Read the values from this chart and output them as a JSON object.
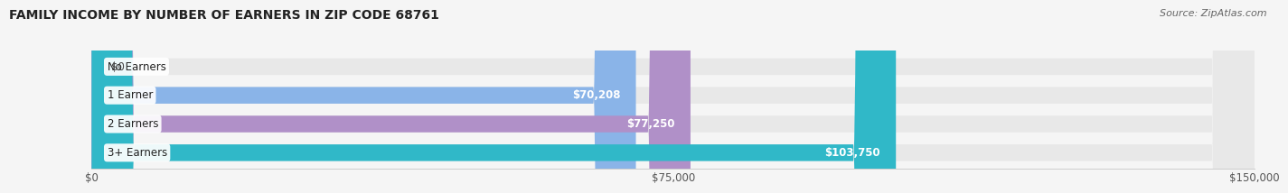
{
  "title": "FAMILY INCOME BY NUMBER OF EARNERS IN ZIP CODE 68761",
  "source": "Source: ZipAtlas.com",
  "categories": [
    "No Earners",
    "1 Earner",
    "2 Earners",
    "3+ Earners"
  ],
  "values": [
    0,
    70208,
    77250,
    103750
  ],
  "labels": [
    "$0",
    "$70,208",
    "$77,250",
    "$103,750"
  ],
  "bar_colors": [
    "#f0a0a8",
    "#8ab4e8",
    "#b090c8",
    "#30b8c8"
  ],
  "bar_bg_color": "#e8e8e8",
  "xlim": [
    0,
    150000
  ],
  "xticks": [
    0,
    75000,
    150000
  ],
  "xtick_labels": [
    "$0",
    "$75,000",
    "$150,000"
  ],
  "title_fontsize": 10,
  "source_fontsize": 8,
  "label_fontsize": 8.5,
  "bar_height": 0.58,
  "background_color": "#f5f5f5",
  "title_color": "#222222",
  "source_color": "#666666",
  "label_color_inside": "#ffffff",
  "label_color_outside": "#444444"
}
